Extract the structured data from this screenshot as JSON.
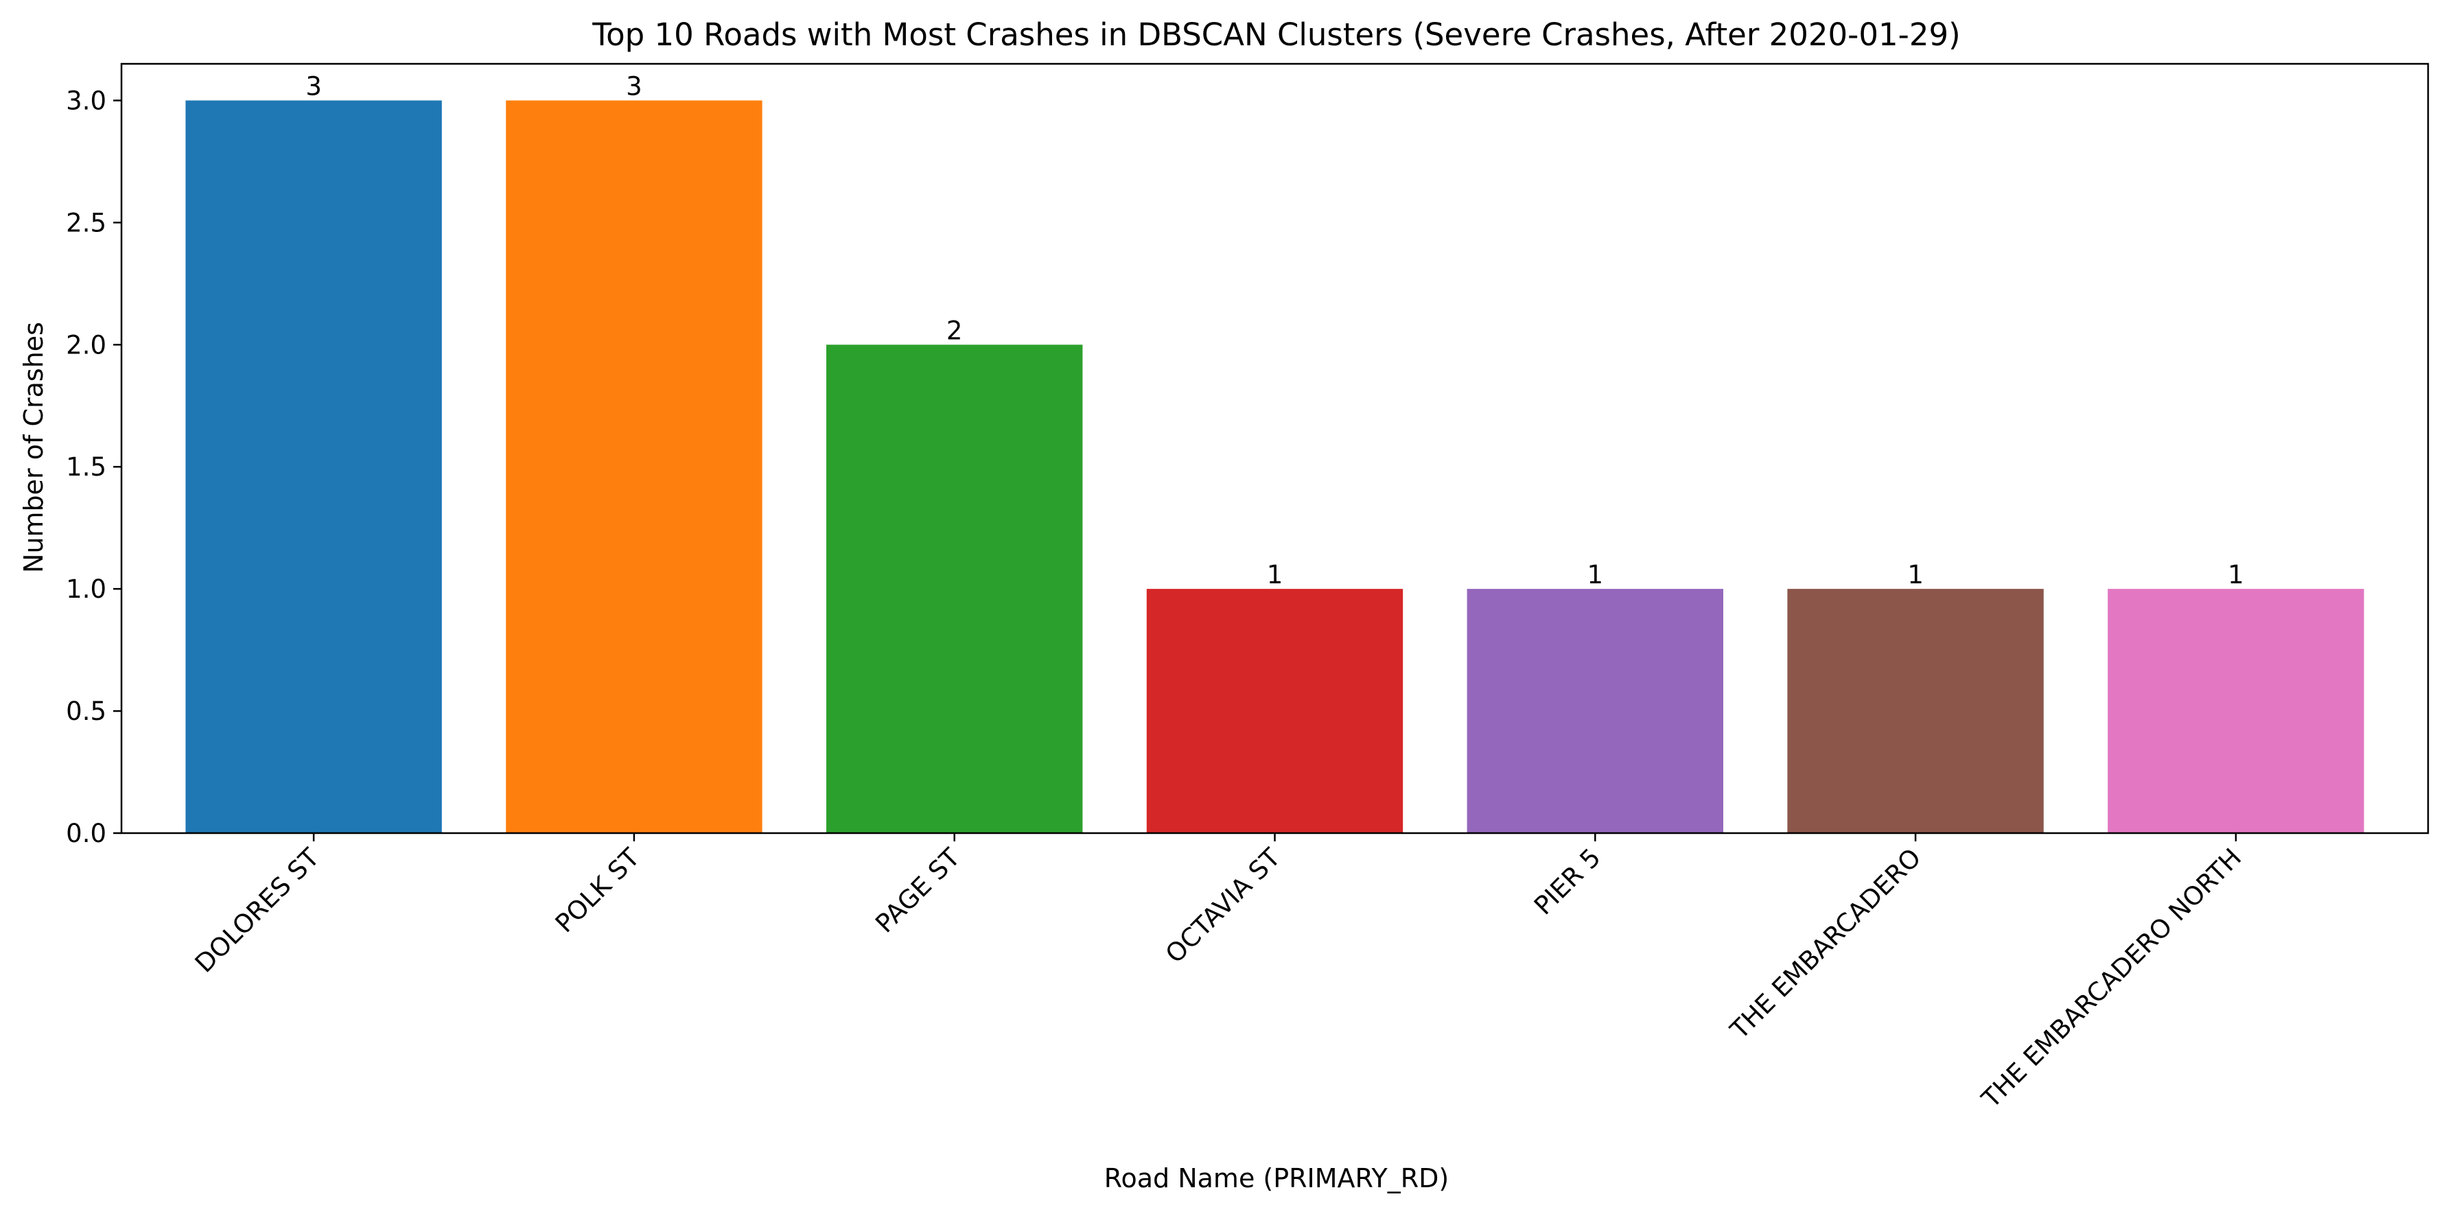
{
  "chart_data": {
    "type": "bar",
    "title": "Top 10 Roads with Most Crashes in DBSCAN Clusters (Severe Crashes, After 2020-01-29)",
    "xlabel": "Road Name (PRIMARY_RD)",
    "ylabel": "Number of Crashes",
    "categories": [
      "DOLORES ST",
      "POLK ST",
      "PAGE ST",
      "OCTAVIA ST",
      "PIER 5",
      "THE EMBARCADERO",
      "THE EMBARCADERO NORTH"
    ],
    "values": [
      3,
      3,
      2,
      1,
      1,
      1,
      1
    ],
    "value_labels": [
      "3",
      "3",
      "2",
      "1",
      "1",
      "1",
      "1"
    ],
    "colors": [
      "#1f77b4",
      "#ff7f0e",
      "#2ca02c",
      "#d62728",
      "#9467bd",
      "#8c564b",
      "#e377c2"
    ],
    "ylim": [
      0,
      3.15
    ],
    "yticks": [
      "0.0",
      "0.5",
      "1.0",
      "1.5",
      "2.0",
      "2.5",
      "3.0"
    ],
    "ytick_values": [
      0,
      0.5,
      1.0,
      1.5,
      2.0,
      2.5,
      3.0
    ],
    "grid": false,
    "legend": "none"
  }
}
